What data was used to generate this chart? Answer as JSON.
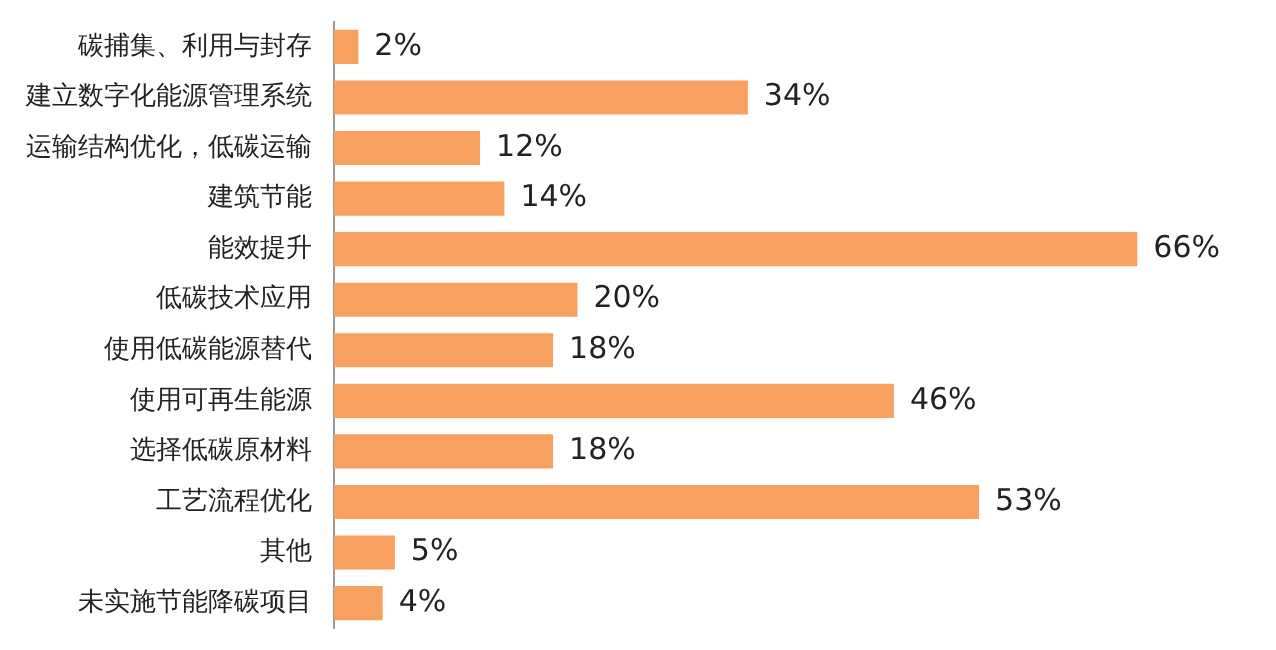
{
  "chart_data": {
    "type": "bar",
    "orientation": "horizontal",
    "categories": [
      "碳捕集、利用与封存",
      "建立数字化能源管理系统",
      "运输结构优化，低碳运输",
      "建筑节能",
      "能效提升",
      "低碳技术应用",
      "使用低碳能源替代",
      "使用可再生能源",
      "选择低碳原材料",
      "工艺流程优化",
      "其他",
      "未实施节能降碳项目"
    ],
    "values": [
      2,
      34,
      12,
      14,
      66,
      20,
      18,
      46,
      18,
      53,
      5,
      4
    ],
    "value_labels": [
      "2%",
      "34%",
      "12%",
      "14%",
      "66%",
      "20%",
      "18%",
      "46%",
      "18%",
      "53%",
      "5%",
      "4%"
    ],
    "color": "#f7a060",
    "tick_labels": "y"
  }
}
